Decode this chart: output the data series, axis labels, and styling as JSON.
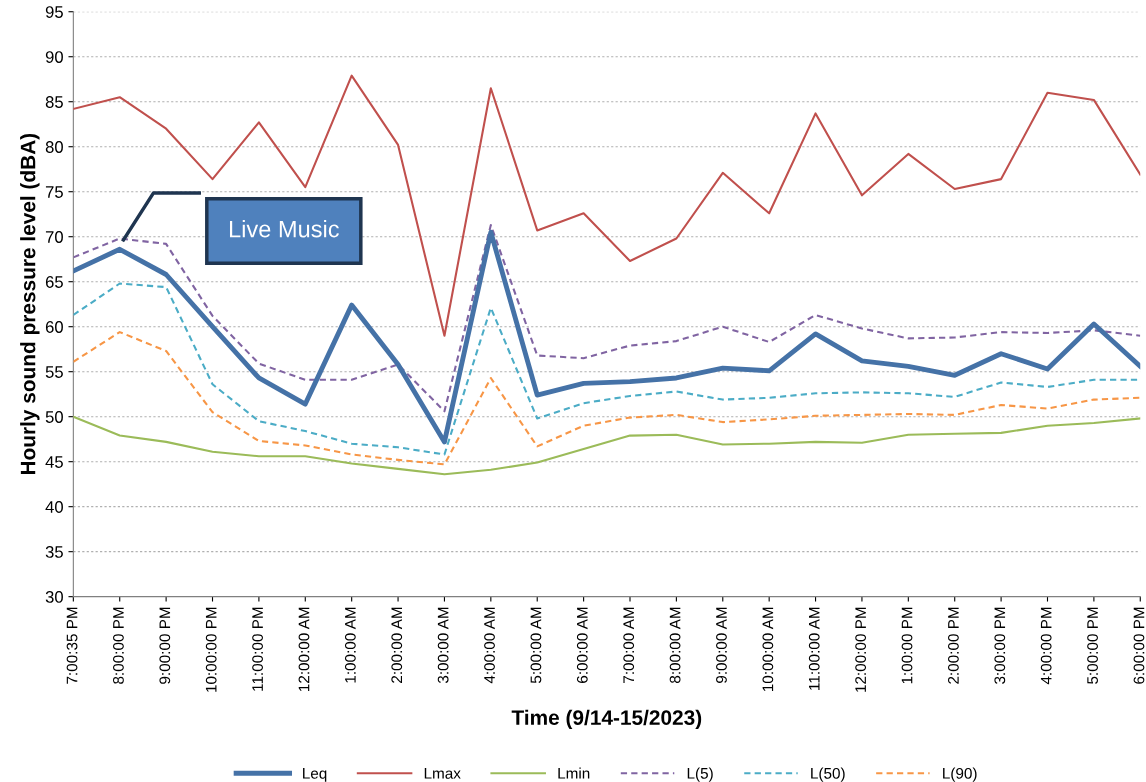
{
  "chart_data": {
    "type": "line",
    "xlabel": "Time (9/14-15/2023)",
    "ylabel": "Hourly sound pressure level (dBA)",
    "categories": [
      "7:00:35 PM",
      "8:00:00 PM",
      "9:00:00 PM",
      "10:00:00 PM",
      "11:00:00 PM",
      "12:00:00 AM",
      "1:00:00 AM",
      "2:00:00 AM",
      "3:00:00 AM",
      "4:00:00 AM",
      "5:00:00 AM",
      "6:00:00 AM",
      "7:00:00 AM",
      "8:00:00 AM",
      "9:00:00 AM",
      "10:00:00 AM",
      "11:00:00 AM",
      "12:00:00 PM",
      "1:00:00 PM",
      "2:00:00 PM",
      "3:00:00 PM",
      "4:00:00 PM",
      "5:00:00 PM",
      "6:00:00 PM"
    ],
    "series": [
      {
        "name": "Leq",
        "color": "#4572a7",
        "line_style": "solid",
        "values": [
          66.2,
          68.6,
          65.8,
          60,
          54.3,
          51.4,
          62.4,
          55.8,
          47.2,
          70.5,
          52.4,
          53.7,
          53.9,
          54.3,
          55.4,
          55.1,
          59.2,
          56.2,
          55.6,
          54.6,
          57,
          55.3,
          60.3,
          55.6
        ]
      },
      {
        "name": "Lmax",
        "color": "#c0504d",
        "line_style": "solid",
        "values": [
          84.2,
          85.5,
          82,
          76.4,
          82.7,
          75.5,
          87.9,
          80.2,
          59,
          86.5,
          70.7,
          72.6,
          67.3,
          69.8,
          77.1,
          72.6,
          83.7,
          74.6,
          79.2,
          75.3,
          76.4,
          86,
          85.2,
          76.9
        ]
      },
      {
        "name": "Lmin",
        "color": "#9bbb59",
        "line_style": "solid",
        "values": [
          50,
          47.9,
          47.2,
          46.1,
          45.6,
          45.6,
          44.8,
          44.2,
          43.6,
          44.1,
          44.9,
          46.4,
          47.9,
          48,
          46.9,
          47,
          47.2,
          47.1,
          48,
          48.1,
          48.2,
          49,
          49.3,
          49.8
        ]
      },
      {
        "name": "L(5)",
        "color": "#8064a2",
        "line_style": "dashed",
        "values": [
          67.7,
          69.8,
          69.2,
          61.2,
          55.9,
          54.1,
          54.1,
          55.8,
          50.6,
          71.3,
          56.8,
          56.5,
          57.9,
          58.4,
          60,
          58.3,
          61.3,
          59.8,
          58.7,
          58.8,
          59.4,
          59.3,
          59.6,
          59
        ]
      },
      {
        "name": "L(50)",
        "color": "#4bacc6",
        "line_style": "dashed",
        "values": [
          61.3,
          64.8,
          64.4,
          53.6,
          49.5,
          48.4,
          47,
          46.6,
          45.8,
          62.1,
          49.8,
          51.5,
          52.3,
          52.8,
          51.9,
          52.1,
          52.6,
          52.7,
          52.6,
          52.2,
          53.8,
          53.3,
          54.1,
          54.1
        ]
      },
      {
        "name": "L(90)",
        "color": "#f79646",
        "line_style": "dashed",
        "values": [
          56.1,
          59.4,
          57.3,
          50.5,
          47.3,
          46.8,
          45.8,
          45.2,
          44.7,
          54.3,
          46.7,
          49,
          49.9,
          50.2,
          49.4,
          49.7,
          50.1,
          50.2,
          50.3,
          50.2,
          51.3,
          50.9,
          51.9,
          52.1
        ]
      }
    ],
    "ylim": [
      30,
      95
    ],
    "yticks": [
      30,
      35,
      40,
      45,
      50,
      55,
      60,
      65,
      70,
      75,
      80,
      85,
      90,
      95
    ],
    "grid": "y",
    "legend": "bottom",
    "marker": "none",
    "annotations": [
      "Live Music"
    ]
  }
}
